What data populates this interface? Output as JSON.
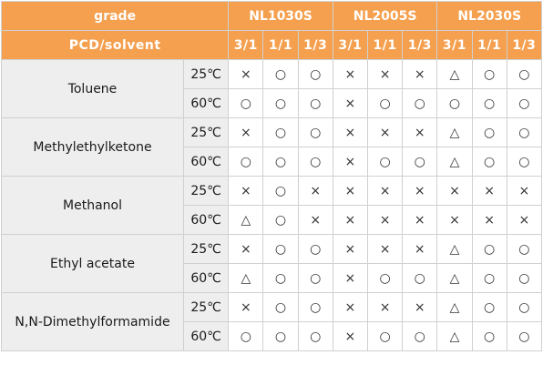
{
  "header": {
    "grade_label": "grade",
    "pcd_label": "PCD/solvent",
    "grades": [
      "NL1030S",
      "NL2005S",
      "NL2030S"
    ],
    "ratios": [
      "3/1",
      "1/1",
      "1/3"
    ]
  },
  "rows": [
    {
      "solvent": "Toluene",
      "temps": [
        {
          "temp": "25℃",
          "marks": [
            "×",
            "○",
            "○",
            "×",
            "×",
            "×",
            "△",
            "○",
            "○"
          ]
        },
        {
          "temp": "60℃",
          "marks": [
            "○",
            "○",
            "○",
            "×",
            "○",
            "○",
            "○",
            "○",
            "○"
          ]
        }
      ]
    },
    {
      "solvent": "Methylethylketone",
      "temps": [
        {
          "temp": "25℃",
          "marks": [
            "×",
            "○",
            "○",
            "×",
            "×",
            "×",
            "△",
            "○",
            "○"
          ]
        },
        {
          "temp": "60℃",
          "marks": [
            "○",
            "○",
            "○",
            "×",
            "○",
            "○",
            "△",
            "○",
            "○"
          ]
        }
      ]
    },
    {
      "solvent": "Methanol",
      "temps": [
        {
          "temp": "25℃",
          "marks": [
            "×",
            "○",
            "×",
            "×",
            "×",
            "×",
            "×",
            "×",
            "×"
          ]
        },
        {
          "temp": "60℃",
          "marks": [
            "△",
            "○",
            "×",
            "×",
            "×",
            "×",
            "×",
            "×",
            "×"
          ]
        }
      ]
    },
    {
      "solvent": "Ethyl acetate",
      "temps": [
        {
          "temp": "25℃",
          "marks": [
            "×",
            "○",
            "○",
            "×",
            "×",
            "×",
            "△",
            "○",
            "○"
          ]
        },
        {
          "temp": "60℃",
          "marks": [
            "△",
            "○",
            "○",
            "×",
            "○",
            "○",
            "△",
            "○",
            "○"
          ]
        }
      ]
    },
    {
      "solvent": "N,N-Dimethylformamide",
      "temps": [
        {
          "temp": "25℃",
          "marks": [
            "×",
            "○",
            "○",
            "×",
            "×",
            "×",
            "△",
            "○",
            "○"
          ]
        },
        {
          "temp": "60℃",
          "marks": [
            "○",
            "○",
            "○",
            "×",
            "○",
            "○",
            "△",
            "○",
            "○"
          ]
        }
      ]
    }
  ],
  "colors": {
    "header_bg": "#f5a04f",
    "header_text": "#ffffff",
    "label_bg": "#eeeeee",
    "border": "#d0d0d0"
  }
}
